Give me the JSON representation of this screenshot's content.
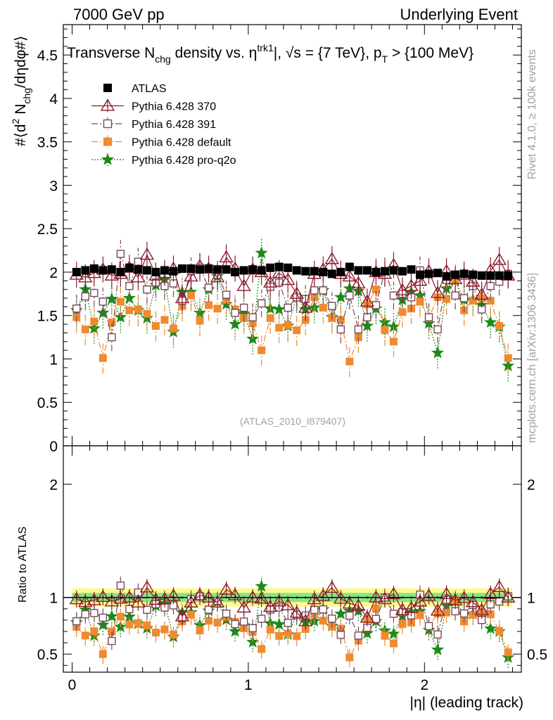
{
  "header": {
    "left": "7000 GeV pp",
    "right": "Underlying Event"
  },
  "title": {
    "prefix": "Transverse N",
    "sub_chg": "chg",
    "mid": " density vs. ",
    "eta": "η",
    "sup_trk1": "trk1",
    "suffix": "|, √s = {7 TeV}, p",
    "sub_T": "T",
    "tail": " > {100 MeV}"
  },
  "side_labels": {
    "rivet": "Rivet 4.1.0, ≥ 100k events",
    "mcplots": "mcplots.cern.ch [arXiv:1306.3436]"
  },
  "analysis_id": "(ATLAS_2010_I879407)",
  "ylabel_main": {
    "a": "#⟨d",
    "b": "2",
    "c": " N",
    "d": "chg",
    "e": "/dηdφ#⟩"
  },
  "ylabel_ratio": "Ratio to ATLAS",
  "xlabel": "|η| (leading track)",
  "legend": [
    {
      "name": "ATLAS",
      "color": "#000000",
      "marker": "square-filled",
      "line": "none"
    },
    {
      "name": "Pythia 6.428 370",
      "color": "#8b1a2b",
      "marker": "triangle-open",
      "line": "solid"
    },
    {
      "name": "Pythia 6.428 391",
      "color": "#7a4a5a",
      "marker": "square-open",
      "line": "dashdot"
    },
    {
      "name": "Pythia 6.428 default",
      "color": "#f08a30",
      "marker": "square-filled",
      "line": "dashdot"
    },
    {
      "name": "Pythia 6.428 pro-q2o",
      "color": "#1a8a1a",
      "marker": "star",
      "line": "dotted"
    }
  ],
  "chart_data": [
    {
      "type": "scatter",
      "title": "Transverse Nchg density vs. |eta trk1|, sqrt(s) = {7 TeV}, pT > {100 MeV}",
      "xlabel": "|η| (leading track)",
      "ylabel": "#<d2 Nchg/dηdφ#>",
      "xlim": [
        -0.05,
        2.55
      ],
      "ylim": [
        0,
        4.85
      ],
      "xticks": [
        "0",
        "1",
        "2"
      ],
      "yticks": [
        "0",
        "0.5",
        "1",
        "1.5",
        "2",
        "2.5",
        "3",
        "3.5",
        "4",
        "4.5"
      ],
      "x": [
        0.025,
        0.075,
        0.125,
        0.175,
        0.225,
        0.275,
        0.325,
        0.375,
        0.425,
        0.475,
        0.525,
        0.575,
        0.625,
        0.675,
        0.725,
        0.775,
        0.825,
        0.875,
        0.925,
        0.975,
        1.025,
        1.075,
        1.125,
        1.175,
        1.225,
        1.275,
        1.325,
        1.375,
        1.425,
        1.475,
        1.525,
        1.575,
        1.625,
        1.675,
        1.725,
        1.775,
        1.825,
        1.875,
        1.925,
        1.975,
        2.025,
        2.075,
        2.125,
        2.175,
        2.225,
        2.275,
        2.325,
        2.375,
        2.425,
        2.475
      ],
      "series": [
        {
          "name": "ATLAS",
          "err": 0.02,
          "values": [
            2.0,
            2.02,
            2.04,
            2.02,
            2.03,
            2.0,
            2.05,
            2.03,
            2.02,
            2.0,
            2.02,
            2.01,
            2.04,
            2.04,
            2.03,
            2.04,
            2.03,
            2.03,
            2.0,
            2.02,
            2.03,
            2.02,
            2.05,
            2.06,
            2.05,
            2.02,
            2.01,
            2.01,
            2.0,
            1.98,
            2.0,
            2.06,
            2.02,
            2.02,
            2.0,
            2.01,
            2.02,
            2.01,
            2.03,
            1.97,
            1.98,
            1.99,
            1.95,
            1.97,
            1.98,
            1.97,
            1.96,
            1.96,
            1.96,
            1.96
          ]
        },
        {
          "name": "Pythia 6.428 370",
          "err": 0.15,
          "values": [
            1.97,
            1.94,
            1.99,
            2.03,
            1.96,
            1.98,
            2.05,
            1.94,
            2.2,
            1.96,
            1.99,
            2.04,
            1.7,
            1.95,
            2.07,
            2.04,
            1.94,
            2.17,
            2.04,
            1.84,
            2.03,
            2.0,
            1.88,
            1.99,
            1.91,
            1.75,
            1.59,
            1.98,
            2.03,
            2.15,
            1.98,
            1.95,
            1.87,
            1.66,
            2.0,
            1.98,
            2.08,
            1.79,
            1.84,
            1.9,
            2.01,
            1.76,
            2.01,
            1.92,
            1.97,
            1.89,
            1.74,
            2.02,
            2.14,
            1.96
          ]
        },
        {
          "name": "Pythia 6.428 391",
          "err": 0.16,
          "values": [
            1.58,
            1.72,
            1.76,
            1.66,
            1.25,
            2.21,
            1.84,
            2.12,
            1.8,
            1.88,
            1.84,
            1.87,
            1.67,
            2.01,
            2.05,
            1.82,
            1.97,
            1.74,
            1.53,
            1.59,
            1.48,
            1.64,
            1.83,
            1.88,
            1.59,
            1.71,
            1.69,
            1.79,
            1.79,
            1.61,
            1.34,
            1.73,
            1.34,
            1.48,
            1.62,
            2.01,
            1.73,
            1.75,
            1.71,
            2.02,
            1.48,
            1.34,
            1.91,
            1.73,
            1.7,
            1.84,
            1.57,
            1.84,
            1.89,
            1.98
          ]
        },
        {
          "name": "Pythia 6.428 default",
          "err": 0.18,
          "values": [
            1.48,
            1.34,
            1.43,
            1.01,
            1.42,
            1.66,
            1.56,
            1.57,
            1.52,
            1.38,
            1.45,
            1.35,
            1.61,
            1.73,
            1.44,
            1.62,
            1.58,
            1.68,
            1.57,
            1.47,
            1.41,
            1.1,
            1.47,
            1.36,
            1.39,
            1.33,
            1.45,
            1.71,
            1.59,
            1.47,
            1.45,
            0.97,
            1.25,
            1.63,
            1.8,
            1.33,
            1.2,
            1.54,
            1.58,
            1.66,
            1.47,
            1.71,
            1.69,
            1.92,
            1.56,
            1.67,
            1.7,
            1.67,
            1.38,
            1.01
          ]
        },
        {
          "name": "Pythia 6.428 pro-q2o",
          "err": 0.18,
          "values": [
            1.56,
            1.8,
            1.35,
            1.53,
            1.69,
            1.48,
            1.7,
            1.56,
            1.47,
            1.85,
            1.91,
            1.31,
            1.77,
            1.77,
            1.53,
            1.8,
            1.95,
            1.63,
            1.4,
            1.52,
            1.23,
            2.22,
            1.58,
            1.57,
            1.38,
            1.71,
            1.57,
            1.59,
            1.79,
            1.48,
            1.71,
            1.81,
            1.78,
            1.38,
            1.58,
            1.42,
            1.37,
            1.68,
            1.77,
            1.73,
            1.41,
            1.07,
            1.81,
            1.9,
            1.68,
            1.68,
            1.62,
            1.42,
            1.37,
            0.92
          ]
        }
      ]
    },
    {
      "type": "scatter",
      "title": "Ratio to ATLAS",
      "xlabel": "|η| (leading track)",
      "ylabel": "Ratio to ATLAS",
      "xlim": [
        -0.05,
        2.55
      ],
      "ylim": [
        0.34,
        2.34
      ],
      "yticks": [
        "0.5",
        "1",
        "2"
      ],
      "bands": {
        "inner": 0.04,
        "outer": 0.08,
        "inner_color": "#86e686",
        "outer_color": "#fdfa8a"
      },
      "note": "ratio series = each Pythia series divided by ATLAS"
    }
  ]
}
